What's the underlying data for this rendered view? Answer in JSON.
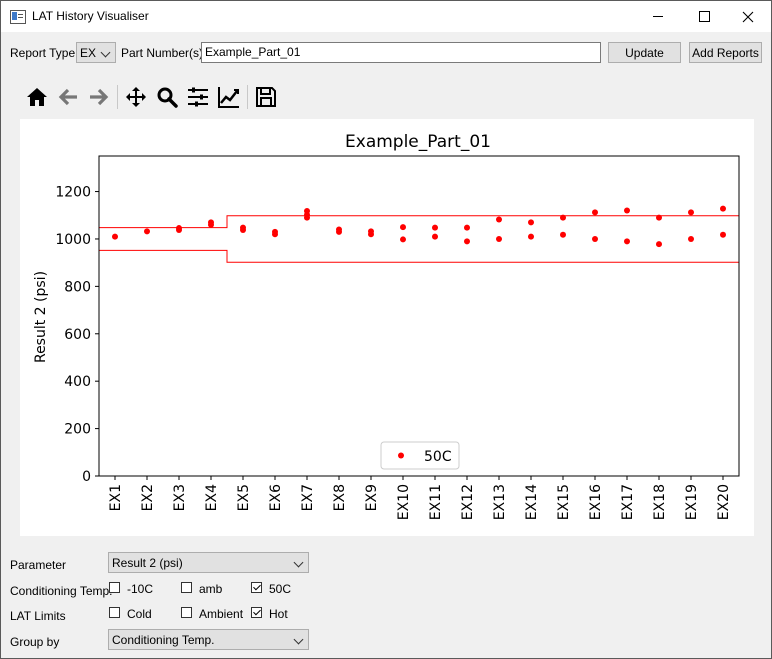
{
  "window": {
    "title": "LAT History Visualiser"
  },
  "top_bar": {
    "report_type_label": "Report Type",
    "report_type_value": "EX",
    "part_numbers_label": "Part Number(s)",
    "part_numbers_value": "Example_Part_01",
    "update_label": "Update",
    "add_reports_label": "Add Reports"
  },
  "toolbar": {
    "items": [
      "home-icon",
      "back-icon",
      "forward-icon",
      "pan-icon",
      "zoom-icon",
      "configure-subplots-icon",
      "edit-axis-icon",
      "save-icon"
    ]
  },
  "chart_data": {
    "type": "scatter",
    "title": "Example_Part_01",
    "xlabel": "",
    "ylabel": "Result 2 (psi)",
    "ylim": [
      0,
      1350
    ],
    "yticks": [
      "0",
      "200",
      "400",
      "600",
      "800",
      "1000",
      "1200"
    ],
    "categories": [
      "EX1",
      "EX2",
      "EX3",
      "EX4",
      "EX5",
      "EX6",
      "EX7",
      "EX8",
      "EX9",
      "EX10",
      "EX11",
      "EX12",
      "EX13",
      "EX14",
      "EX15",
      "EX16",
      "EX17",
      "EX18",
      "EX19",
      "EX20"
    ],
    "series": [
      {
        "name": "50C",
        "color": "#ff0000",
        "points": [
          [
            1,
            1010
          ],
          [
            2,
            1032
          ],
          [
            3,
            1038
          ],
          [
            3,
            1046
          ],
          [
            4,
            1060
          ],
          [
            4,
            1070
          ],
          [
            5,
            1038
          ],
          [
            5,
            1048
          ],
          [
            6,
            1020
          ],
          [
            6,
            1030
          ],
          [
            7,
            1090
          ],
          [
            7,
            1102
          ],
          [
            7,
            1118
          ],
          [
            8,
            1030
          ],
          [
            8,
            1040
          ],
          [
            9,
            1020
          ],
          [
            9,
            1032
          ],
          [
            10,
            998
          ],
          [
            10,
            1050
          ],
          [
            11,
            1010
          ],
          [
            11,
            1048
          ],
          [
            12,
            990
          ],
          [
            12,
            1048
          ],
          [
            13,
            1000
          ],
          [
            13,
            1082
          ],
          [
            14,
            1010
          ],
          [
            14,
            1070
          ],
          [
            15,
            1018
          ],
          [
            15,
            1090
          ],
          [
            16,
            1000
          ],
          [
            16,
            1112
          ],
          [
            17,
            990
          ],
          [
            17,
            1120
          ],
          [
            18,
            978
          ],
          [
            18,
            1090
          ],
          [
            19,
            1000
          ],
          [
            19,
            1112
          ],
          [
            20,
            1018
          ],
          [
            20,
            1128
          ]
        ]
      }
    ],
    "limits": {
      "color": "#ff0000",
      "upper": [
        {
          "from": 0,
          "to": 4.5,
          "y": 1048
        },
        {
          "from": 4.5,
          "to": 21,
          "y": 1098
        }
      ],
      "lower": [
        {
          "from": 0,
          "to": 4.5,
          "y": 952
        },
        {
          "from": 4.5,
          "to": 21,
          "y": 902
        }
      ]
    },
    "grid": false,
    "legend": "bottom-center"
  },
  "controls": {
    "parameter_label": "Parameter",
    "parameter_value": "Result 2 (psi)",
    "conditioning_label": "Conditioning Temp.",
    "conditioning_options": [
      {
        "label": "-10C",
        "checked": false
      },
      {
        "label": "amb",
        "checked": false
      },
      {
        "label": "50C",
        "checked": true
      }
    ],
    "lat_limits_label": "LAT Limits",
    "lat_limit_options": [
      {
        "label": "Cold",
        "checked": false
      },
      {
        "label": "Ambient",
        "checked": false
      },
      {
        "label": "Hot",
        "checked": true
      }
    ],
    "group_by_label": "Group by",
    "group_by_value": "Conditioning Temp."
  }
}
